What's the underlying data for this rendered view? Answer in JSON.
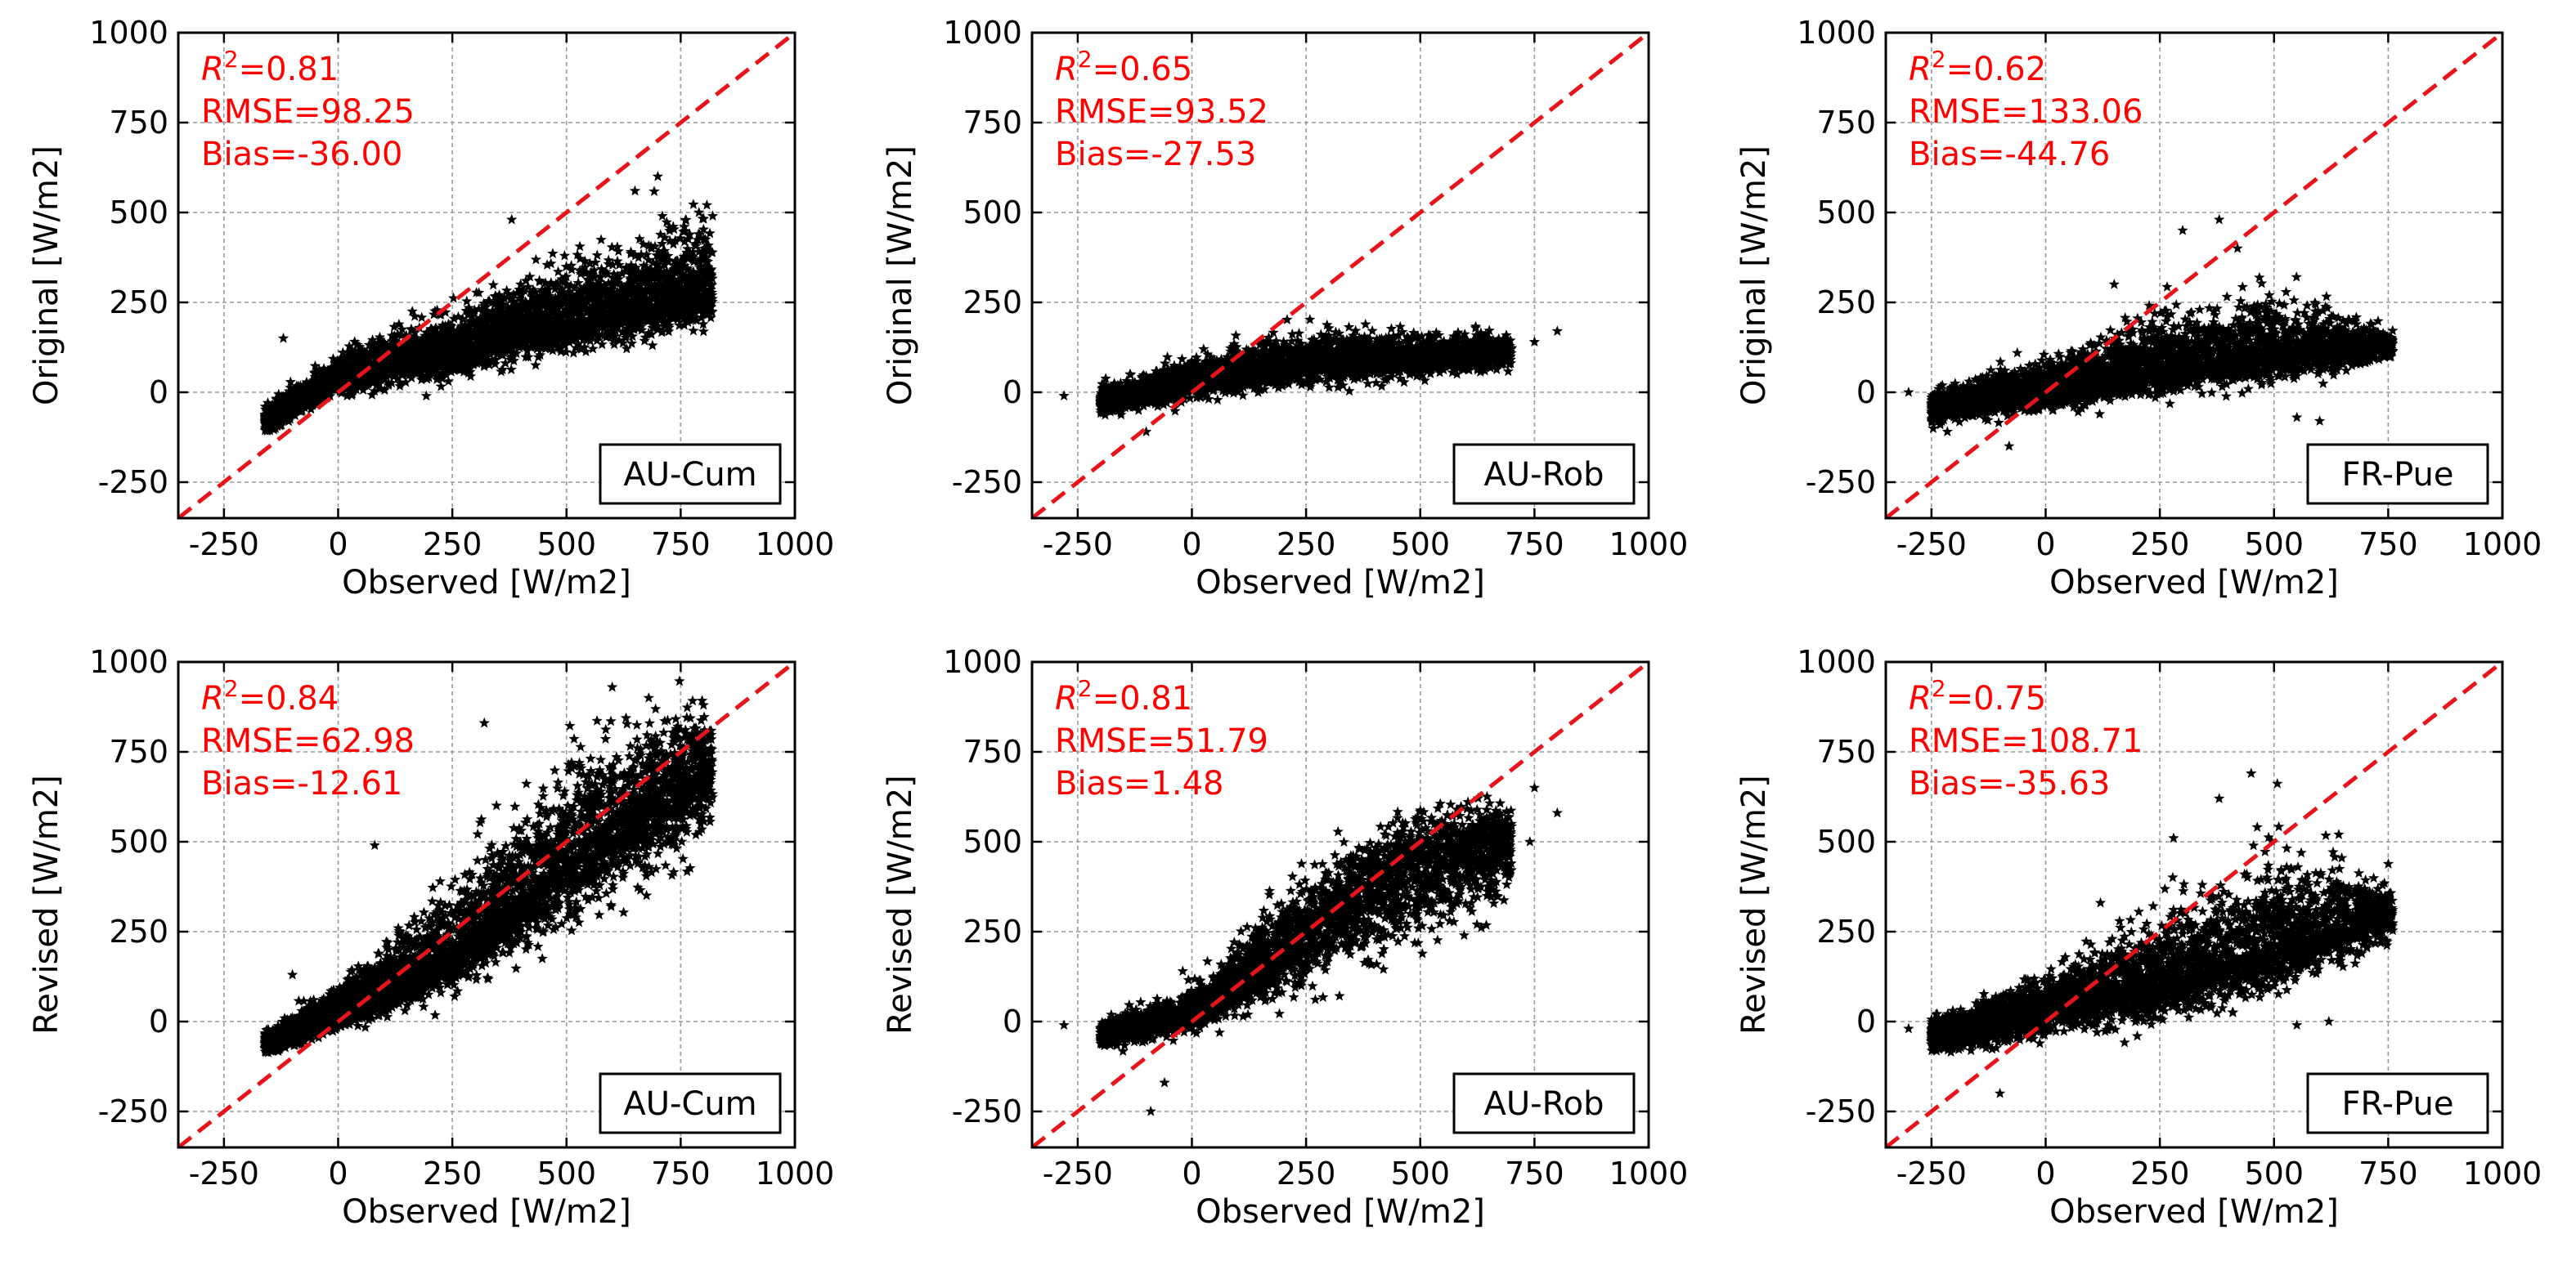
{
  "figure": {
    "title": "",
    "marker": "star",
    "marker_color": "#000000",
    "fit_line_color": "#e8141b",
    "stats_color": "#ff0000"
  },
  "chart_data": [
    {
      "type": "scatter",
      "site": "AU-Cum",
      "xlabel": "Observed [W/m2]",
      "ylabel": "Original [W/m2]",
      "xlim": [
        -350,
        1000
      ],
      "ylim": [
        -350,
        1000
      ],
      "xticks": [
        -250,
        0,
        250,
        500,
        750,
        1000
      ],
      "yticks": [
        -250,
        0,
        250,
        500,
        750,
        1000
      ],
      "grid": true,
      "one_to_one_line": true,
      "stats": {
        "r2": "0.81",
        "rmse": "98.25",
        "bias": "-36.00"
      },
      "stats_lines": {
        "r2_prefix": "R",
        "r2_sup": "2",
        "r2_value": "=0.81",
        "rmse": "RMSE=98.25",
        "bias": "Bias=-36.00"
      },
      "cloud": {
        "x_range": [
          -160,
          820
        ],
        "trend": [
          [
            -150,
            -80
          ],
          [
            0,
            40
          ],
          [
            250,
            120
          ],
          [
            500,
            200
          ],
          [
            750,
            260
          ],
          [
            820,
            280
          ]
        ],
        "spread_below": [
          30,
          40,
          80,
          90,
          90,
          80
        ],
        "spread_above": [
          40,
          70,
          110,
          170,
          230,
          220
        ],
        "n": 4500,
        "outliers": [
          [
            650,
            560
          ],
          [
            700,
            600
          ],
          [
            380,
            480
          ],
          [
            790,
            500
          ],
          [
            820,
            490
          ],
          [
            -120,
            150
          ]
        ]
      }
    },
    {
      "type": "scatter",
      "site": "AU-Rob",
      "xlabel": "Observed [W/m2]",
      "ylabel": "Original [W/m2]",
      "xlim": [
        -350,
        1000
      ],
      "ylim": [
        -350,
        1000
      ],
      "xticks": [
        -250,
        0,
        250,
        500,
        750,
        1000
      ],
      "yticks": [
        -250,
        0,
        250,
        500,
        750,
        1000
      ],
      "grid": true,
      "one_to_one_line": true,
      "stats": {
        "r2": "0.65",
        "rmse": "93.52",
        "bias": "-27.53"
      },
      "stats_lines": {
        "r2_prefix": "R",
        "r2_sup": "2",
        "r2_value": "=0.65",
        "rmse": "RMSE=93.52",
        "bias": "Bias=-27.53"
      },
      "cloud": {
        "x_range": [
          -200,
          700
        ],
        "trend": [
          [
            -200,
            -30
          ],
          [
            0,
            30
          ],
          [
            250,
            80
          ],
          [
            500,
            100
          ],
          [
            700,
            110
          ]
        ],
        "spread_below": [
          30,
          50,
          60,
          60,
          40
        ],
        "spread_above": [
          40,
          70,
          90,
          80,
          50
        ],
        "n": 3500,
        "outliers": [
          [
            -280,
            -10
          ],
          [
            750,
            140
          ],
          [
            800,
            170
          ],
          [
            -100,
            -110
          ]
        ]
      }
    },
    {
      "type": "scatter",
      "site": "FR-Pue",
      "xlabel": "Observed [W/m2]",
      "ylabel": "Original [W/m2]",
      "xlim": [
        -350,
        1000
      ],
      "ylim": [
        -350,
        1000
      ],
      "xticks": [
        -250,
        0,
        250,
        500,
        750,
        1000
      ],
      "yticks": [
        -250,
        0,
        250,
        500,
        750,
        1000
      ],
      "grid": true,
      "one_to_one_line": true,
      "stats": {
        "r2": "0.62",
        "rmse": "133.06",
        "bias": "-44.76"
      },
      "stats_lines": {
        "r2_prefix": "R",
        "r2_sup": "2",
        "r2_value": "=0.62",
        "rmse": "RMSE=133.06",
        "bias": "Bias=-44.76"
      },
      "cloud": {
        "x_range": [
          -250,
          760
        ],
        "trend": [
          [
            -250,
            -40
          ],
          [
            0,
            10
          ],
          [
            250,
            60
          ],
          [
            500,
            100
          ],
          [
            760,
            130
          ]
        ],
        "spread_below": [
          50,
          60,
          70,
          70,
          40
        ],
        "spread_above": [
          40,
          80,
          160,
          180,
          40
        ],
        "n": 4000,
        "outliers": [
          [
            380,
            480
          ],
          [
            300,
            450
          ],
          [
            420,
            400
          ],
          [
            -300,
            0
          ],
          [
            -80,
            -150
          ],
          [
            150,
            300
          ],
          [
            550,
            -70
          ],
          [
            600,
            -80
          ]
        ]
      }
    },
    {
      "type": "scatter",
      "site": "AU-Cum",
      "xlabel": "Observed [W/m2]",
      "ylabel": "Revised [W/m2]",
      "xlim": [
        -350,
        1000
      ],
      "ylim": [
        -350,
        1000
      ],
      "xticks": [
        -250,
        0,
        250,
        500,
        750,
        1000
      ],
      "yticks": [
        -250,
        0,
        250,
        500,
        750,
        1000
      ],
      "grid": true,
      "one_to_one_line": true,
      "stats": {
        "r2": "0.84",
        "rmse": "62.98",
        "bias": "-12.61"
      },
      "stats_lines": {
        "r2_prefix": "R",
        "r2_sup": "2",
        "r2_value": "=0.84",
        "rmse": "RMSE=62.98",
        "bias": "Bias=-12.61"
      },
      "cloud": {
        "x_range": [
          -160,
          820
        ],
        "trend": [
          [
            -150,
            -60
          ],
          [
            0,
            20
          ],
          [
            250,
            180
          ],
          [
            500,
            450
          ],
          [
            750,
            650
          ],
          [
            820,
            700
          ]
        ],
        "spread_below": [
          30,
          40,
          100,
          180,
          200,
          150
        ],
        "spread_above": [
          40,
          80,
          200,
          300,
          250,
          200
        ],
        "n": 4500,
        "outliers": [
          [
            600,
            930
          ],
          [
            680,
            900
          ],
          [
            320,
            830
          ],
          [
            80,
            490
          ],
          [
            -100,
            130
          ],
          [
            800,
            880
          ]
        ]
      }
    },
    {
      "type": "scatter",
      "site": "AU-Rob",
      "xlabel": "Observed [W/m2]",
      "ylabel": "Revised [W/m2]",
      "xlim": [
        -350,
        1000
      ],
      "ylim": [
        -350,
        1000
      ],
      "xticks": [
        -250,
        0,
        250,
        500,
        750,
        1000
      ],
      "yticks": [
        -250,
        0,
        250,
        500,
        750,
        1000
      ],
      "grid": true,
      "one_to_one_line": true,
      "stats": {
        "r2": "0.81",
        "rmse": "51.79",
        "bias": "1.48"
      },
      "stats_lines": {
        "r2_prefix": "R",
        "r2_sup": "2",
        "r2_value": "=0.81",
        "rmse": "RMSE=51.79",
        "bias": "Bias=1.48"
      },
      "cloud": {
        "x_range": [
          -200,
          700
        ],
        "trend": [
          [
            -200,
            -40
          ],
          [
            0,
            20
          ],
          [
            200,
            200
          ],
          [
            400,
            380
          ],
          [
            600,
            480
          ],
          [
            700,
            500
          ]
        ],
        "spread_below": [
          30,
          50,
          130,
          200,
          200,
          150
        ],
        "spread_above": [
          40,
          70,
          150,
          180,
          150,
          100
        ],
        "n": 3500,
        "outliers": [
          [
            -280,
            -10
          ],
          [
            -20,
            140
          ],
          [
            -90,
            -250
          ],
          [
            -60,
            -170
          ],
          [
            750,
            650
          ],
          [
            800,
            580
          ],
          [
            740,
            500
          ]
        ]
      }
    },
    {
      "type": "scatter",
      "site": "FR-Pue",
      "xlabel": "Observed [W/m2]",
      "ylabel": "Revised [W/m2]",
      "xlim": [
        -350,
        1000
      ],
      "ylim": [
        -350,
        1000
      ],
      "xticks": [
        -250,
        0,
        250,
        500,
        750,
        1000
      ],
      "yticks": [
        -250,
        0,
        250,
        500,
        750,
        1000
      ],
      "grid": true,
      "one_to_one_line": true,
      "stats": {
        "r2": "0.75",
        "rmse": "108.71",
        "bias": "-35.63"
      },
      "stats_lines": {
        "r2_prefix": "R",
        "r2_sup": "2",
        "r2_value": "=0.75",
        "rmse": "RMSE=108.71",
        "bias": "Bias=-35.63"
      },
      "cloud": {
        "x_range": [
          -250,
          760
        ],
        "trend": [
          [
            -250,
            -40
          ],
          [
            0,
            40
          ],
          [
            250,
            110
          ],
          [
            500,
            200
          ],
          [
            760,
            300
          ]
        ],
        "spread_below": [
          50,
          80,
          110,
          120,
          60
        ],
        "spread_above": [
          50,
          90,
          200,
          300,
          80
        ],
        "n": 4000,
        "outliers": [
          [
            450,
            690
          ],
          [
            380,
            620
          ],
          [
            280,
            510
          ],
          [
            -300,
            -20
          ],
          [
            -100,
            -200
          ],
          [
            120,
            330
          ],
          [
            550,
            -10
          ],
          [
            620,
            0
          ]
        ]
      }
    }
  ]
}
